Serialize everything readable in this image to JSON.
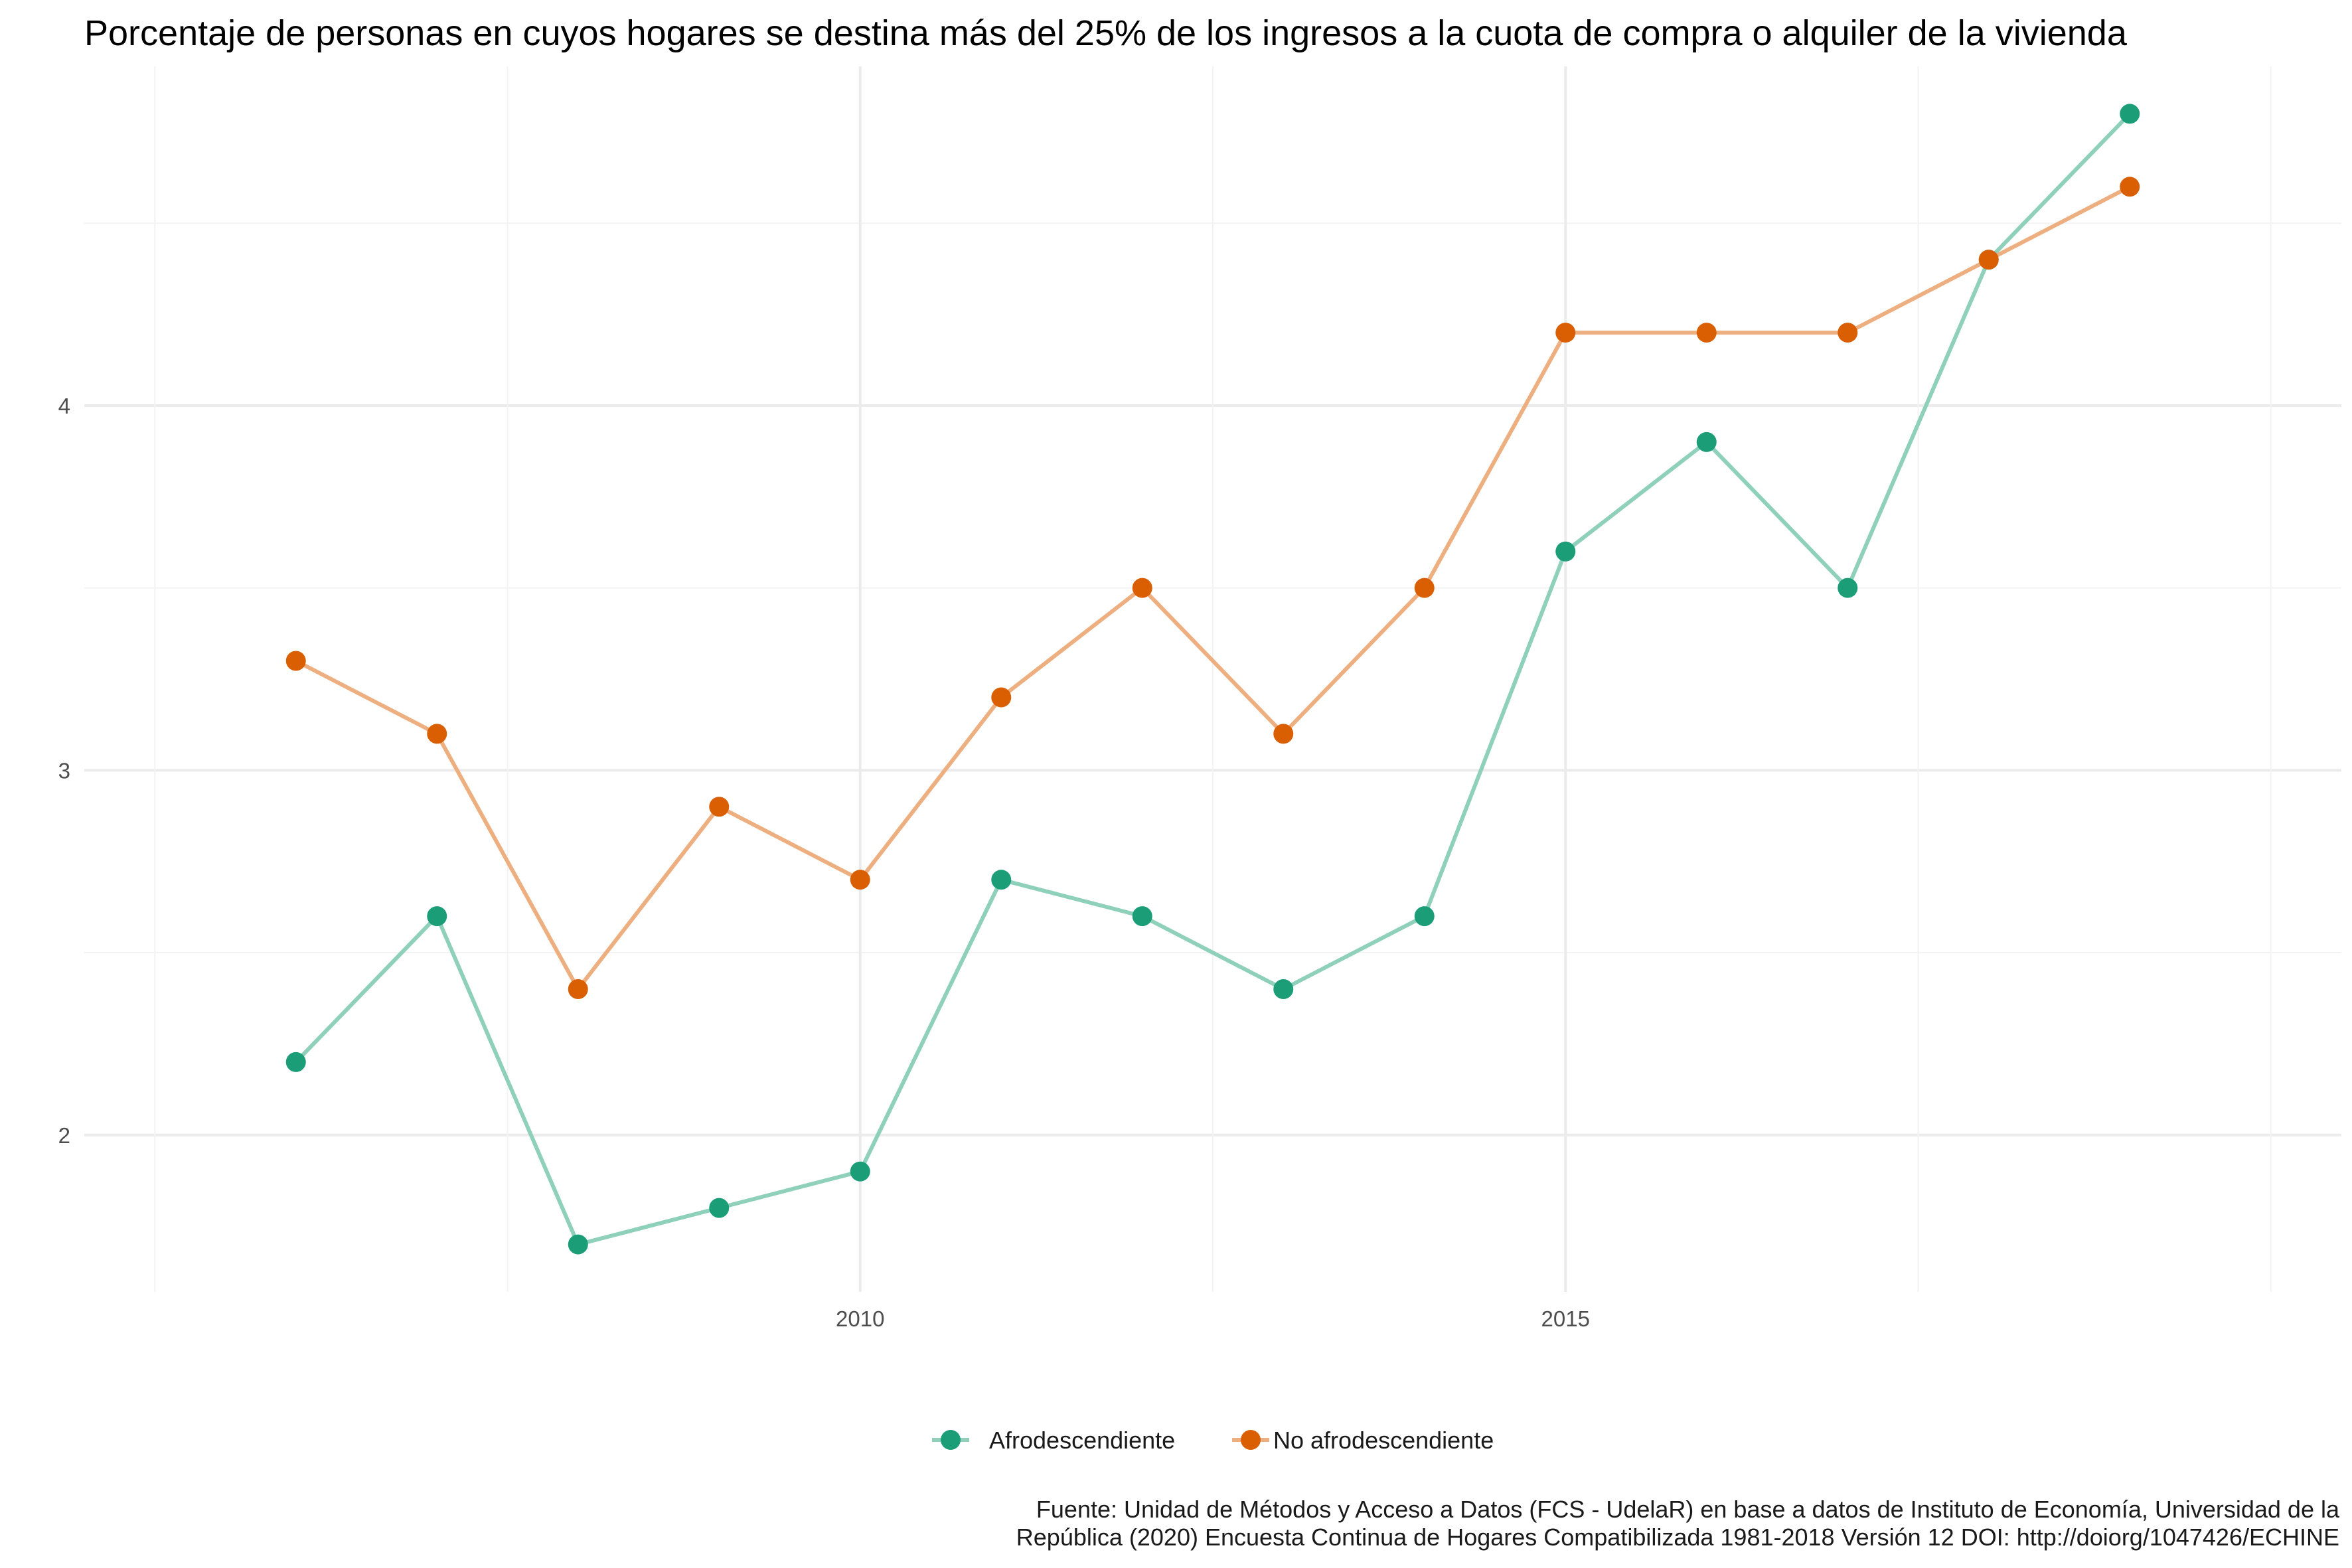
{
  "chart_data": {
    "type": "line",
    "title": "Porcentaje de personas en cuyos hogares se destina más del 25% de los ingresos a la cuota de compra o alquiler de la vivienda",
    "xlabel": "",
    "ylabel": "",
    "x": [
      2006,
      2007,
      2008,
      2009,
      2010,
      2011,
      2012,
      2013,
      2014,
      2015,
      2016,
      2017,
      2018,
      2019
    ],
    "x_ticks": [
      2010,
      2015
    ],
    "x_tick_labels": [
      "2010",
      "2015"
    ],
    "y_ticks": [
      2,
      3,
      4
    ],
    "y_tick_labels": [
      "2",
      "3",
      "4"
    ],
    "xlim": [
      2004.5,
      2020.5
    ],
    "ylim": [
      1.57,
      4.93
    ],
    "grid": true,
    "legend_position": "bottom",
    "series": [
      {
        "name": "Afrodescendiente",
        "color": "#1b9e77",
        "line_color": "#8fd0bb",
        "values": [
          2.2,
          2.6,
          1.7,
          1.8,
          1.9,
          2.7,
          2.6,
          2.4,
          2.6,
          3.6,
          3.9,
          3.5,
          4.4,
          4.8
        ]
      },
      {
        "name": "No afrodescendiente",
        "color": "#d95f02",
        "line_color": "#eeaf80",
        "values": [
          3.3,
          3.1,
          2.4,
          2.9,
          2.7,
          3.2,
          3.5,
          3.1,
          3.5,
          4.2,
          4.2,
          4.2,
          4.4,
          4.6
        ]
      }
    ],
    "caption": [
      "Fuente: Unidad de Métodos y Acceso a Datos (FCS - UdelaR) en base a datos de Instituto de Economía, Universidad de la",
      "República (2020) Encuesta Continua de Hogares Compatibilizada 1981-2018 Versión 12 DOI: http://doiorg/1047426/ECHINE"
    ]
  }
}
